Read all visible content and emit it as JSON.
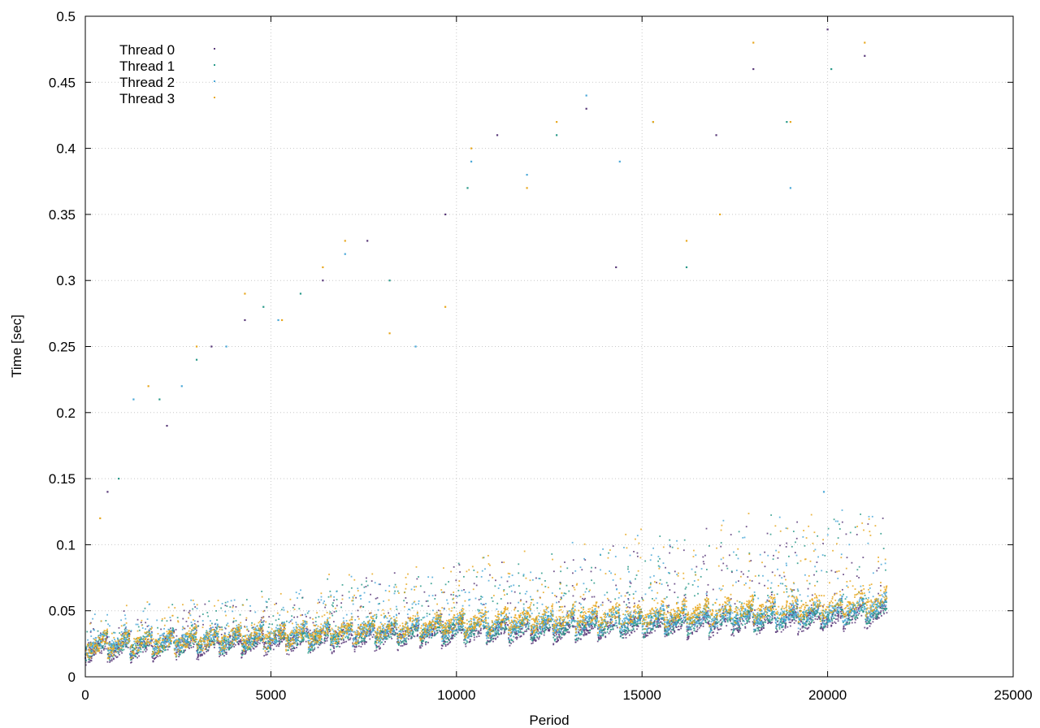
{
  "chart_data": {
    "type": "scatter",
    "title": "",
    "xlabel": "Period",
    "ylabel": "Time [sec]",
    "xlim": [
      0,
      25000
    ],
    "ylim": [
      0,
      0.5
    ],
    "xticks": [
      0,
      5000,
      10000,
      15000,
      20000,
      25000
    ],
    "yticks": [
      0,
      0.05,
      0.1,
      0.15,
      0.2,
      0.25,
      0.3,
      0.35,
      0.4,
      0.45,
      0.5
    ],
    "xtick_labels": [
      "0",
      "5000",
      "10000",
      "15000",
      "20000",
      "25000"
    ],
    "ytick_labels": [
      "0",
      "0.05",
      "0.1",
      "0.15",
      "0.2",
      "0.25",
      "0.3",
      "0.35",
      "0.4",
      "0.45",
      "0.5"
    ],
    "grid": true,
    "legend_position": "top-left",
    "x_extent": [
      0,
      21600
    ],
    "series": [
      {
        "name": "Thread 0",
        "color": "#5a3a7a",
        "baseline_trend": [
          [
            0,
            0.012
          ],
          [
            5000,
            0.018
          ],
          [
            10000,
            0.025
          ],
          [
            15000,
            0.03
          ],
          [
            20000,
            0.035
          ],
          [
            21600,
            0.04
          ]
        ],
        "outliers": [
          [
            600,
            0.14
          ],
          [
            2200,
            0.19
          ],
          [
            3400,
            0.25
          ],
          [
            4300,
            0.27
          ],
          [
            6400,
            0.3
          ],
          [
            7600,
            0.33
          ],
          [
            9700,
            0.35
          ],
          [
            11100,
            0.41
          ],
          [
            13500,
            0.43
          ],
          [
            14300,
            0.31
          ],
          [
            17000,
            0.41
          ],
          [
            18000,
            0.46
          ],
          [
            20000,
            0.49
          ],
          [
            21000,
            0.47
          ]
        ]
      },
      {
        "name": "Thread 1",
        "color": "#2a9a8a",
        "baseline_trend": [
          [
            0,
            0.014
          ],
          [
            5000,
            0.02
          ],
          [
            10000,
            0.027
          ],
          [
            15000,
            0.032
          ],
          [
            20000,
            0.038
          ],
          [
            21600,
            0.042
          ]
        ],
        "outliers": [
          [
            900,
            0.15
          ],
          [
            2000,
            0.21
          ],
          [
            3000,
            0.24
          ],
          [
            4800,
            0.28
          ],
          [
            5800,
            0.29
          ],
          [
            8200,
            0.3
          ],
          [
            10300,
            0.37
          ],
          [
            12700,
            0.41
          ],
          [
            15300,
            0.42
          ],
          [
            16200,
            0.31
          ],
          [
            18900,
            0.42
          ],
          [
            20100,
            0.46
          ]
        ]
      },
      {
        "name": "Thread 2",
        "color": "#4aa8d8",
        "baseline_trend": [
          [
            0,
            0.016
          ],
          [
            5000,
            0.022
          ],
          [
            10000,
            0.03
          ],
          [
            15000,
            0.035
          ],
          [
            20000,
            0.04
          ],
          [
            21600,
            0.045
          ]
        ],
        "outliers": [
          [
            1300,
            0.21
          ],
          [
            2600,
            0.22
          ],
          [
            3800,
            0.25
          ],
          [
            5200,
            0.27
          ],
          [
            7000,
            0.32
          ],
          [
            8900,
            0.25
          ],
          [
            10400,
            0.39
          ],
          [
            11900,
            0.38
          ],
          [
            13500,
            0.44
          ],
          [
            14400,
            0.39
          ],
          [
            19000,
            0.37
          ],
          [
            19900,
            0.14
          ]
        ]
      },
      {
        "name": "Thread 3",
        "color": "#e8a820",
        "baseline_trend": [
          [
            0,
            0.015
          ],
          [
            5000,
            0.022
          ],
          [
            10000,
            0.032
          ],
          [
            15000,
            0.038
          ],
          [
            20000,
            0.045
          ],
          [
            21600,
            0.05
          ]
        ],
        "outliers": [
          [
            400,
            0.12
          ],
          [
            1700,
            0.22
          ],
          [
            3000,
            0.25
          ],
          [
            4300,
            0.29
          ],
          [
            5300,
            0.27
          ],
          [
            6400,
            0.31
          ],
          [
            7000,
            0.33
          ],
          [
            8200,
            0.26
          ],
          [
            9700,
            0.28
          ],
          [
            10400,
            0.4
          ],
          [
            11900,
            0.37
          ],
          [
            12700,
            0.42
          ],
          [
            15300,
            0.42
          ],
          [
            16200,
            0.33
          ],
          [
            17100,
            0.35
          ],
          [
            18000,
            0.48
          ],
          [
            19000,
            0.42
          ],
          [
            21000,
            0.48
          ]
        ]
      }
    ]
  }
}
